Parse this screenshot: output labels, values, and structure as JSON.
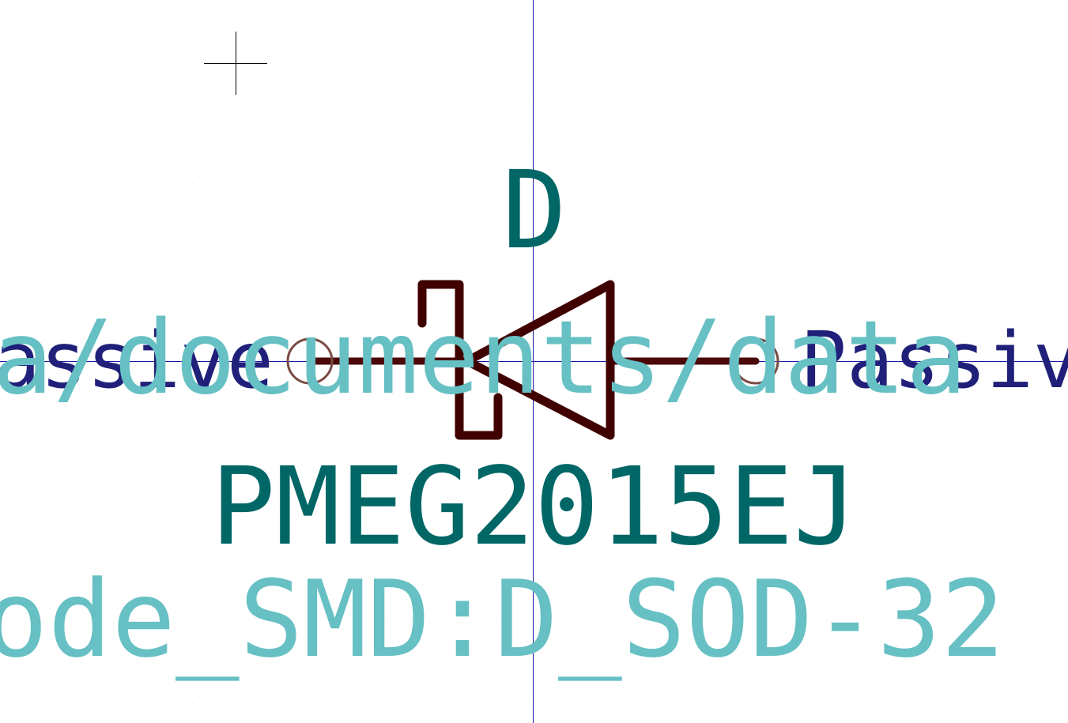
{
  "app": "KiCad Symbol Editor",
  "colors": {
    "background": "#ffffff",
    "grid_dot": "#e6e6e6",
    "axis": "#1a1aa6",
    "cursor": "#000000",
    "body": "#400000",
    "pin_line": "#4a0808",
    "pin_endpoint": "#7a4a44",
    "reference_value": "#006666",
    "pin_type": "#20207a",
    "hidden_field": "#66c0c4"
  },
  "symbol": {
    "reference": "D",
    "value": "PMEG2015EJ",
    "footprint_field": "ode_SMD:D_SOD-32",
    "datasheet_field": "a/documents/data",
    "pins": [
      {
        "side": "left",
        "electrical_type": "assive"
      },
      {
        "side": "right",
        "electrical_type": "Passiv"
      }
    ],
    "graphic": "schottky-diode"
  }
}
